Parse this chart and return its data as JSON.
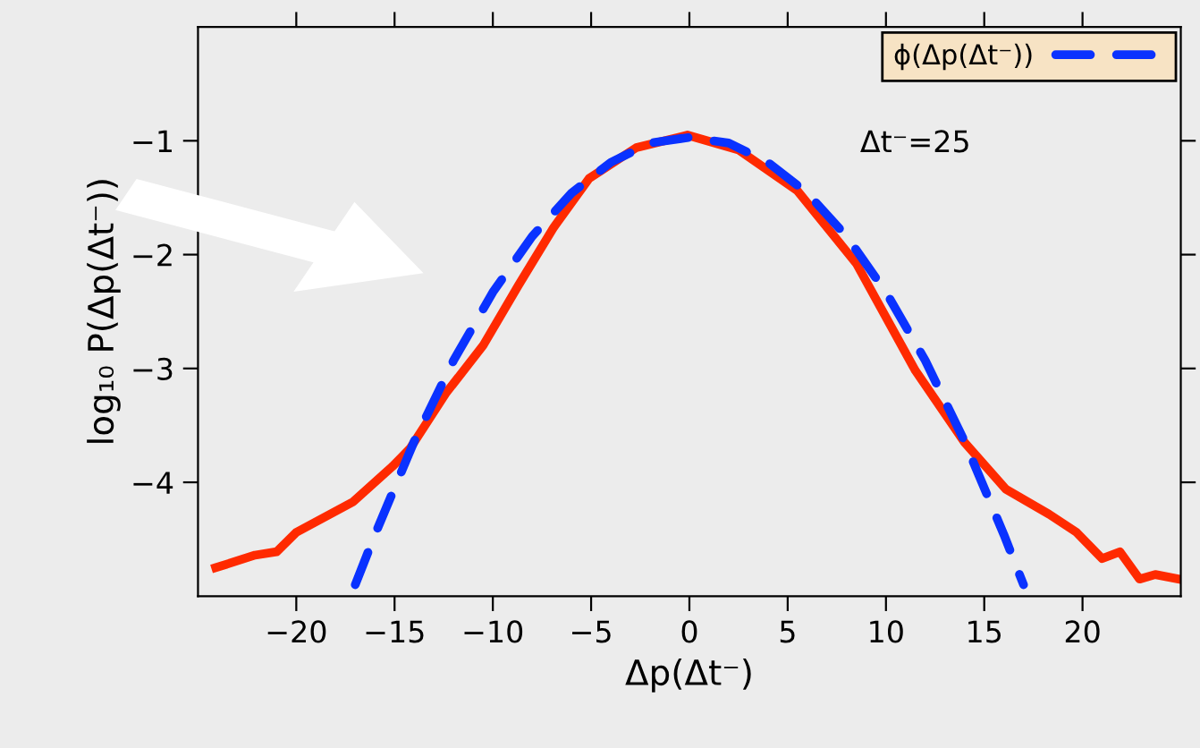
{
  "chart_data": {
    "type": "line",
    "xlabel": "Δp(Δt⁻)",
    "ylabel": "log₁₀ P(Δp(Δt⁻))",
    "annotations": [
      "Δt⁻=25"
    ],
    "series": [
      {
        "color": "#ff2a00",
        "line_style": "solid",
        "x": [
          -24.1,
          -22.1,
          -21.0,
          -20.0,
          -17.1,
          -15.1,
          -14.2,
          -12.4,
          -10.5,
          -8.7,
          -6.9,
          -5.1,
          -2.7,
          -0.1,
          2.5,
          5.5,
          8.5,
          11.5,
          14.0,
          16.1,
          18.3,
          19.7,
          21.0,
          21.9,
          22.9,
          23.7,
          24.9
        ],
        "values": [
          -4.75,
          -4.64,
          -4.61,
          -4.44,
          -4.17,
          -3.86,
          -3.7,
          -3.22,
          -2.8,
          -2.27,
          -1.76,
          -1.33,
          -1.06,
          -0.95,
          -1.08,
          -1.44,
          -2.08,
          -3.02,
          -3.65,
          -4.06,
          -4.28,
          -4.44,
          -4.67,
          -4.61,
          -4.85,
          -4.81,
          -4.85
        ]
      },
      {
        "name": "ϕ(Δp(Δt⁻))",
        "color": "#0a32ff",
        "line_style": "dashed",
        "x": [
          -17.0,
          -16,
          -14,
          -12,
          -10,
          -8,
          -6,
          -4,
          -2,
          0,
          2,
          4,
          6,
          8,
          10,
          12,
          14,
          16,
          17.0
        ],
        "values": [
          -4.9,
          -4.46,
          -3.64,
          -2.93,
          -2.33,
          -1.84,
          -1.46,
          -1.19,
          -1.02,
          -0.97,
          -1.02,
          -1.19,
          -1.46,
          -1.84,
          -2.33,
          -2.93,
          -3.64,
          -4.46,
          -4.9
        ]
      }
    ],
    "xlim": [
      -25,
      25
    ],
    "ylim": [
      -5,
      0
    ],
    "xticks": [
      -20,
      -15,
      -10,
      -5,
      0,
      5,
      10,
      15,
      20
    ],
    "yticks": [
      -4,
      -3,
      -2,
      -1
    ],
    "grid": false,
    "legend": "top right",
    "marker": "none"
  }
}
